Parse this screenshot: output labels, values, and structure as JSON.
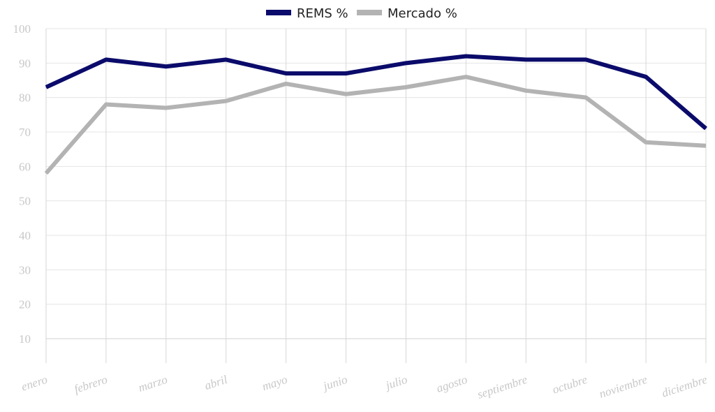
{
  "chart_data": {
    "type": "line",
    "categories": [
      "enero",
      "febrero",
      "marzo",
      "abril",
      "mayo",
      "junio",
      "julio",
      "agosto",
      "septiembre",
      "octubre",
      "noviembre",
      "diciembre"
    ],
    "series": [
      {
        "name": "REMS %",
        "color": "#0b0b6b",
        "values": [
          83,
          91,
          89,
          91,
          87,
          87,
          90,
          92,
          91,
          91,
          86,
          71
        ]
      },
      {
        "name": "Mercado %",
        "color": "#b3b3b3",
        "values": [
          58,
          78,
          77,
          79,
          84,
          81,
          83,
          86,
          82,
          80,
          67,
          66
        ]
      }
    ],
    "yticks": [
      10,
      20,
      30,
      40,
      50,
      60,
      70,
      80,
      90,
      100
    ],
    "ylim": [
      0,
      100
    ],
    "grid": true,
    "legend_position": "top-center",
    "title": "",
    "xlabel": "",
    "ylabel": ""
  }
}
